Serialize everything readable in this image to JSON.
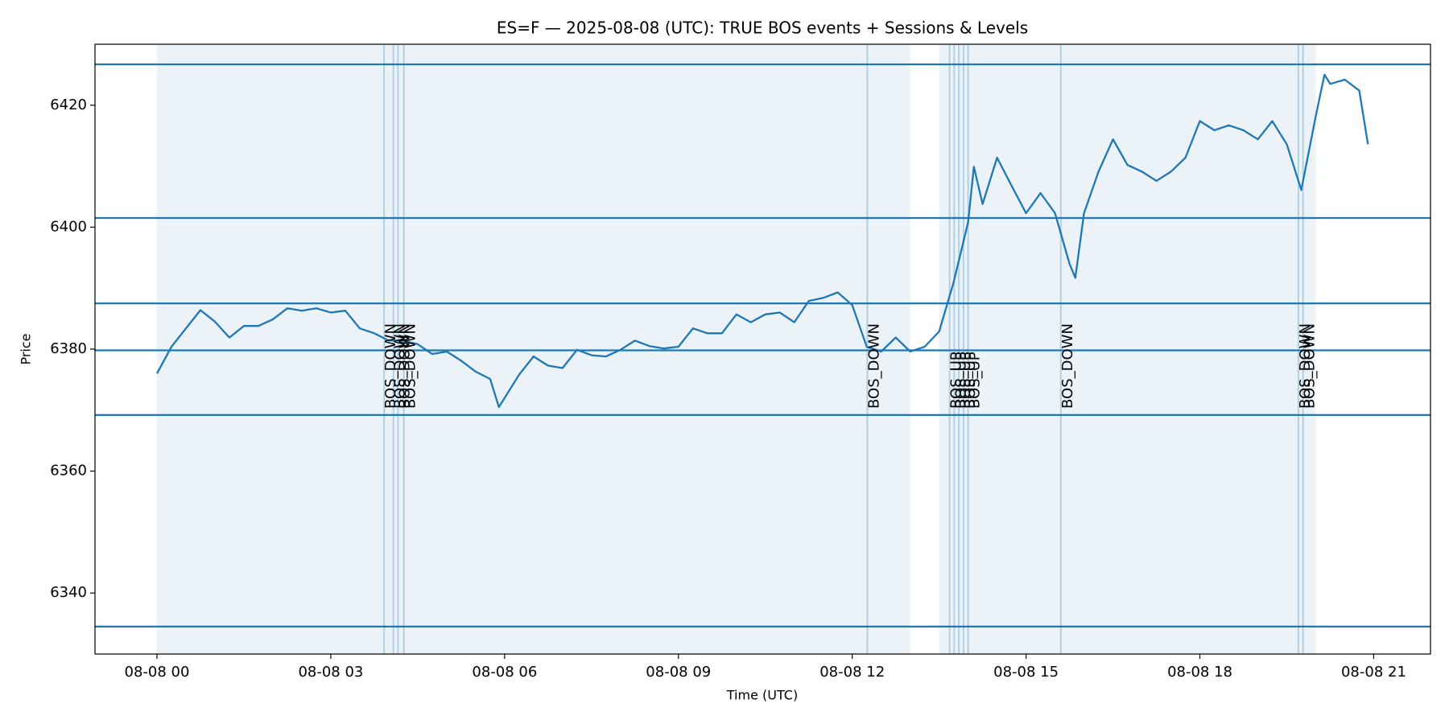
{
  "chart_data": {
    "type": "line",
    "title": "ES=F — 2025-08-08 (UTC): TRUE BOS events + Sessions & Levels",
    "xlabel": "Time (UTC)",
    "ylabel": "Price",
    "color": "#1f77b4",
    "x": [
      0,
      0.25,
      0.5,
      0.75,
      1.0,
      1.25,
      1.5,
      1.75,
      2.0,
      2.25,
      2.5,
      2.75,
      3.0,
      3.25,
      3.5,
      3.75,
      4.0,
      4.25,
      4.5,
      4.75,
      5.0,
      5.25,
      5.5,
      5.75,
      5.9,
      6.0,
      6.25,
      6.5,
      6.75,
      7.0,
      7.25,
      7.5,
      7.75,
      8.0,
      8.25,
      8.5,
      8.75,
      9.0,
      9.25,
      9.5,
      9.75,
      10.0,
      10.25,
      10.5,
      10.75,
      11.0,
      11.25,
      11.5,
      11.75,
      12.0,
      12.25,
      12.5,
      12.75,
      13.0,
      13.25,
      13.5,
      13.75,
      14.0,
      14.1,
      14.25,
      14.5,
      14.75,
      15.0,
      15.25,
      15.5,
      15.75,
      15.85,
      16.0,
      16.25,
      16.5,
      16.75,
      17.0,
      17.25,
      17.5,
      17.75,
      18.0,
      18.25,
      18.5,
      18.75,
      19.0,
      19.25,
      19.5,
      19.75,
      20.0,
      20.15,
      20.25,
      20.5,
      20.75,
      20.9
    ],
    "values": [
      6376.0,
      6380.4,
      6383.4,
      6386.4,
      6384.5,
      6381.9,
      6383.8,
      6383.8,
      6384.9,
      6386.7,
      6386.3,
      6386.7,
      6386.0,
      6386.3,
      6383.4,
      6382.6,
      6381.4,
      6381.4,
      6380.8,
      6379.2,
      6379.6,
      6378.1,
      6376.3,
      6375.1,
      6370.5,
      6372.0,
      6375.8,
      6378.8,
      6377.3,
      6376.9,
      6379.9,
      6379.0,
      6378.8,
      6379.9,
      6381.4,
      6380.5,
      6380.1,
      6380.4,
      6383.4,
      6382.6,
      6382.6,
      6385.7,
      6384.4,
      6385.7,
      6386.0,
      6384.4,
      6387.9,
      6388.4,
      6389.3,
      6387.2,
      6380.4,
      6379.6,
      6381.9,
      6379.6,
      6380.4,
      6382.9,
      6391.0,
      6400.8,
      6409.9,
      6403.8,
      6411.4,
      6406.8,
      6402.3,
      6405.6,
      6402.3,
      6394.0,
      6391.7,
      6402.3,
      6409.1,
      6414.4,
      6410.2,
      6409.1,
      6407.6,
      6409.1,
      6411.4,
      6417.4,
      6415.9,
      6416.7,
      6415.9,
      6414.4,
      6417.4,
      6413.6,
      6406.1,
      6418.2,
      6425.0,
      6423.5,
      6424.2,
      6422.4,
      6413.6
    ],
    "levels": [
      6426.7,
      6401.5,
      6387.5,
      6379.8,
      6369.2,
      6334.5
    ],
    "sessions": [
      [
        0,
        13.0
      ],
      [
        13.5,
        20.0
      ]
    ],
    "events": [
      {
        "x": 3.92,
        "label": "BOS_DOWN"
      },
      {
        "x": 4.08,
        "label": "BOS_DOWN"
      },
      {
        "x": 4.16,
        "label": "BOS_DOWN"
      },
      {
        "x": 4.26,
        "label": "BOS_DOWN"
      },
      {
        "x": 12.26,
        "label": "BOS_DOWN"
      },
      {
        "x": 13.68,
        "label": "BOS_UP"
      },
      {
        "x": 13.76,
        "label": "BOS_UP"
      },
      {
        "x": 13.84,
        "label": "BOS_UP"
      },
      {
        "x": 13.92,
        "label": "BOS_UP"
      },
      {
        "x": 14.0,
        "label": "BOS_UP"
      },
      {
        "x": 15.6,
        "label": "BOS_DOWN"
      },
      {
        "x": 19.7,
        "label": "BOS_DOWN"
      },
      {
        "x": 19.78,
        "label": "BOS_DOWN"
      }
    ],
    "xlim": [
      -1.07,
      21.98
    ],
    "ylim": [
      6330,
      6430
    ],
    "xticks": [
      {
        "value": 0,
        "label": "08-08 00"
      },
      {
        "value": 3,
        "label": "08-08 03"
      },
      {
        "value": 6,
        "label": "08-08 06"
      },
      {
        "value": 9,
        "label": "08-08 09"
      },
      {
        "value": 12,
        "label": "08-08 12"
      },
      {
        "value": 15,
        "label": "08-08 15"
      },
      {
        "value": 18,
        "label": "08-08 18"
      },
      {
        "value": 21,
        "label": "08-08 21"
      }
    ],
    "yticks": [
      6340,
      6360,
      6380,
      6400,
      6420
    ]
  }
}
